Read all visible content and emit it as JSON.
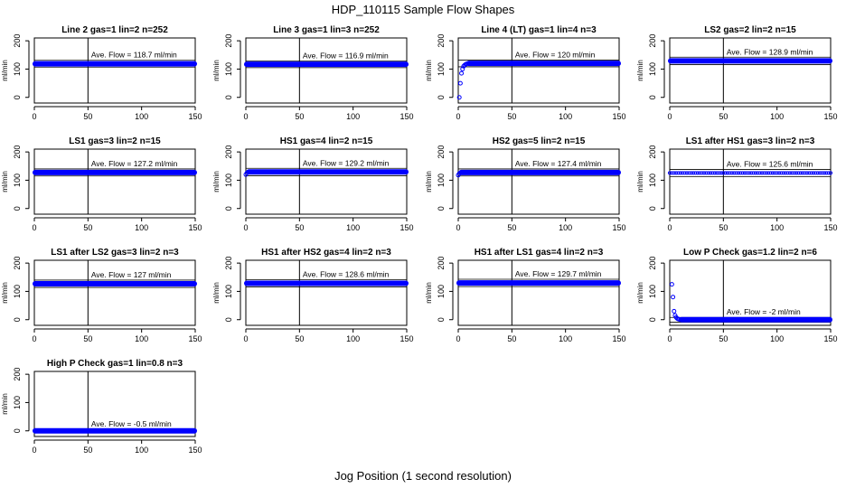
{
  "title": "HDP_110115  Sample Flow Shapes",
  "xlabel": "Jog Position (1 second resolution)",
  "colors": {
    "points": "#0000ff",
    "axes": "#000000"
  },
  "chart_data": [
    {
      "type": "scatter",
      "title": "Line 2 gas=1 lin=2 n=252",
      "ylabel": "ml/min",
      "xlim": [
        0,
        150
      ],
      "ylim": [
        -20,
        210
      ],
      "xticks": [
        0,
        50,
        100,
        150
      ],
      "yticks": [
        0,
        100,
        200
      ],
      "vline": 50,
      "annotation": "Ave. Flow =  118.7  ml/min",
      "hline_mean": 118.7,
      "band": [
        107,
        131
      ],
      "series": [
        {
          "shape": "flat",
          "level": 118.7,
          "x_start": 0,
          "x_end": 150
        }
      ]
    },
    {
      "type": "scatter",
      "title": "Line 3 gas=1 lin=3 n=252",
      "ylabel": "ml/min",
      "xlim": [
        0,
        150
      ],
      "ylim": [
        -20,
        210
      ],
      "xticks": [
        0,
        50,
        100,
        150
      ],
      "yticks": [
        0,
        100,
        200
      ],
      "vline": 50,
      "annotation": "Ave. Flow =  116.9  ml/min",
      "hline_mean": 116.9,
      "band": [
        105,
        129
      ],
      "series": [
        {
          "shape": "flat",
          "level": 116.9,
          "x_start": 0,
          "x_end": 150
        }
      ]
    },
    {
      "type": "scatter",
      "title": "Line 4 (LT) gas=1 lin=4 n=3",
      "ylabel": "ml/min",
      "xlim": [
        0,
        150
      ],
      "ylim": [
        -20,
        210
      ],
      "xticks": [
        0,
        50,
        100,
        150
      ],
      "yticks": [
        0,
        100,
        200
      ],
      "vline": 50,
      "annotation": "Ave. Flow =  120  ml/min",
      "hline_mean": 120,
      "band": [
        108,
        132
      ],
      "series": [
        {
          "shape": "rise",
          "level": 120,
          "x_start": 0,
          "x_end": 150,
          "start_points": [
            [
              1,
              0
            ],
            [
              2,
              50
            ],
            [
              3,
              85
            ],
            [
              4,
              100
            ],
            [
              5,
              110
            ],
            [
              6,
              114
            ],
            [
              7,
              117
            ],
            [
              8,
              119
            ]
          ]
        }
      ]
    },
    {
      "type": "scatter",
      "title": "LS2 gas=2 lin=2 n=15",
      "ylabel": "ml/min",
      "xlim": [
        0,
        150
      ],
      "ylim": [
        -20,
        210
      ],
      "xticks": [
        0,
        50,
        100,
        150
      ],
      "yticks": [
        0,
        100,
        200
      ],
      "vline": 50,
      "annotation": "Ave. Flow =  128.9  ml/min",
      "hline_mean": 128.9,
      "band": [
        116,
        142
      ],
      "series": [
        {
          "shape": "flat",
          "level": 128.9,
          "x_start": 0,
          "x_end": 150
        }
      ]
    },
    {
      "type": "scatter",
      "title": "LS1 gas=3 lin=2 n=15",
      "ylabel": "ml/min",
      "xlim": [
        0,
        150
      ],
      "ylim": [
        -20,
        210
      ],
      "xticks": [
        0,
        50,
        100,
        150
      ],
      "yticks": [
        0,
        100,
        200
      ],
      "vline": 50,
      "annotation": "Ave. Flow =  127.2  ml/min",
      "hline_mean": 127.2,
      "band": [
        115,
        140
      ],
      "series": [
        {
          "shape": "flat",
          "level": 127.2,
          "x_start": 0,
          "x_end": 150
        }
      ]
    },
    {
      "type": "scatter",
      "title": "HS1 gas=4 lin=2 n=15",
      "ylabel": "ml/min",
      "xlim": [
        0,
        150
      ],
      "ylim": [
        -20,
        210
      ],
      "xticks": [
        0,
        50,
        100,
        150
      ],
      "yticks": [
        0,
        100,
        200
      ],
      "vline": 50,
      "annotation": "Ave. Flow =  129.2  ml/min",
      "hline_mean": 129.2,
      "band": [
        116,
        142
      ],
      "series": [
        {
          "shape": "flat",
          "level": 129.2,
          "x_start": 0,
          "x_end": 150,
          "start_points": [
            [
              0,
              120
            ],
            [
              1,
              126
            ]
          ]
        }
      ]
    },
    {
      "type": "scatter",
      "title": "HS2 gas=5 lin=2 n=15",
      "ylabel": "ml/min",
      "xlim": [
        0,
        150
      ],
      "ylim": [
        -20,
        210
      ],
      "xticks": [
        0,
        50,
        100,
        150
      ],
      "yticks": [
        0,
        100,
        200
      ],
      "vline": 50,
      "annotation": "Ave. Flow =  127.4  ml/min",
      "hline_mean": 127.4,
      "band": [
        115,
        140
      ],
      "series": [
        {
          "shape": "flat",
          "level": 127.4,
          "x_start": 0,
          "x_end": 150,
          "start_points": [
            [
              0,
              118
            ],
            [
              1,
              124
            ]
          ]
        }
      ]
    },
    {
      "type": "scatter",
      "title": "LS1 after HS1 gas=3 lin=2 n=3",
      "ylabel": "ml/min",
      "xlim": [
        0,
        150
      ],
      "ylim": [
        -20,
        210
      ],
      "xticks": [
        0,
        50,
        100,
        150
      ],
      "yticks": [
        0,
        100,
        200
      ],
      "vline": 50,
      "annotation": "Ave. Flow =  125.6  ml/min",
      "hline_mean": 125.6,
      "band": [
        113,
        138
      ],
      "series": [
        {
          "shape": "sparse",
          "level": 125.6,
          "x_start": 0,
          "x_end": 150
        }
      ]
    },
    {
      "type": "scatter",
      "title": "LS1 after LS2 gas=3 lin=2 n=3",
      "ylabel": "ml/min",
      "xlim": [
        0,
        150
      ],
      "ylim": [
        -20,
        210
      ],
      "xticks": [
        0,
        50,
        100,
        150
      ],
      "yticks": [
        0,
        100,
        200
      ],
      "vline": 50,
      "annotation": "Ave. Flow =  127  ml/min",
      "hline_mean": 127,
      "band": [
        114,
        140
      ],
      "series": [
        {
          "shape": "flat",
          "level": 127,
          "x_start": 0,
          "x_end": 150
        }
      ]
    },
    {
      "type": "scatter",
      "title": "HS1 after HS2 gas=4 lin=2 n=3",
      "ylabel": "ml/min",
      "xlim": [
        0,
        150
      ],
      "ylim": [
        -20,
        210
      ],
      "xticks": [
        0,
        50,
        100,
        150
      ],
      "yticks": [
        0,
        100,
        200
      ],
      "vline": 50,
      "annotation": "Ave. Flow =  128.6  ml/min",
      "hline_mean": 128.6,
      "band": [
        116,
        141
      ],
      "series": [
        {
          "shape": "flat",
          "level": 128.6,
          "x_start": 0,
          "x_end": 150
        }
      ]
    },
    {
      "type": "scatter",
      "title": "HS1 after LS1 gas=4 lin=2 n=3",
      "ylabel": "ml/min",
      "xlim": [
        0,
        150
      ],
      "ylim": [
        -20,
        210
      ],
      "xticks": [
        0,
        50,
        100,
        150
      ],
      "yticks": [
        0,
        100,
        200
      ],
      "vline": 50,
      "annotation": "Ave. Flow =  129.7  ml/min",
      "hline_mean": 129.7,
      "band": [
        117,
        143
      ],
      "series": [
        {
          "shape": "flat",
          "level": 129.7,
          "x_start": 0,
          "x_end": 150
        }
      ]
    },
    {
      "type": "scatter",
      "title": "Low P Check gas=1.2 lin=2 n=6",
      "ylabel": "ml/min",
      "xlim": [
        0,
        150
      ],
      "ylim": [
        -20,
        210
      ],
      "xticks": [
        0,
        50,
        100,
        150
      ],
      "yticks": [
        0,
        100,
        200
      ],
      "vline": 50,
      "annotation": "Ave. Flow =  -2  ml/min",
      "hline_mean": -2,
      "band": [
        -9,
        8
      ],
      "series": [
        {
          "shape": "decay",
          "level": 0,
          "x_start": 0,
          "x_end": 150,
          "start_points": [
            [
              2,
              125
            ],
            [
              3,
              80
            ],
            [
              4,
              30
            ],
            [
              5,
              15
            ],
            [
              6,
              8
            ],
            [
              7,
              4
            ],
            [
              8,
              2
            ],
            [
              9,
              1
            ]
          ]
        }
      ]
    },
    {
      "type": "scatter",
      "title": "High P Check gas=1 lin=0.8 n=3",
      "ylabel": "ml/min",
      "xlim": [
        0,
        150
      ],
      "ylim": [
        -20,
        210
      ],
      "xticks": [
        0,
        50,
        100,
        150
      ],
      "yticks": [
        0,
        100,
        200
      ],
      "vline": 50,
      "annotation": "Ave. Flow =  -0.5  ml/min",
      "hline_mean": -0.5,
      "band": [
        -5,
        5
      ],
      "series": [
        {
          "shape": "flat",
          "level": 0,
          "x_start": 0,
          "x_end": 150
        }
      ]
    }
  ]
}
